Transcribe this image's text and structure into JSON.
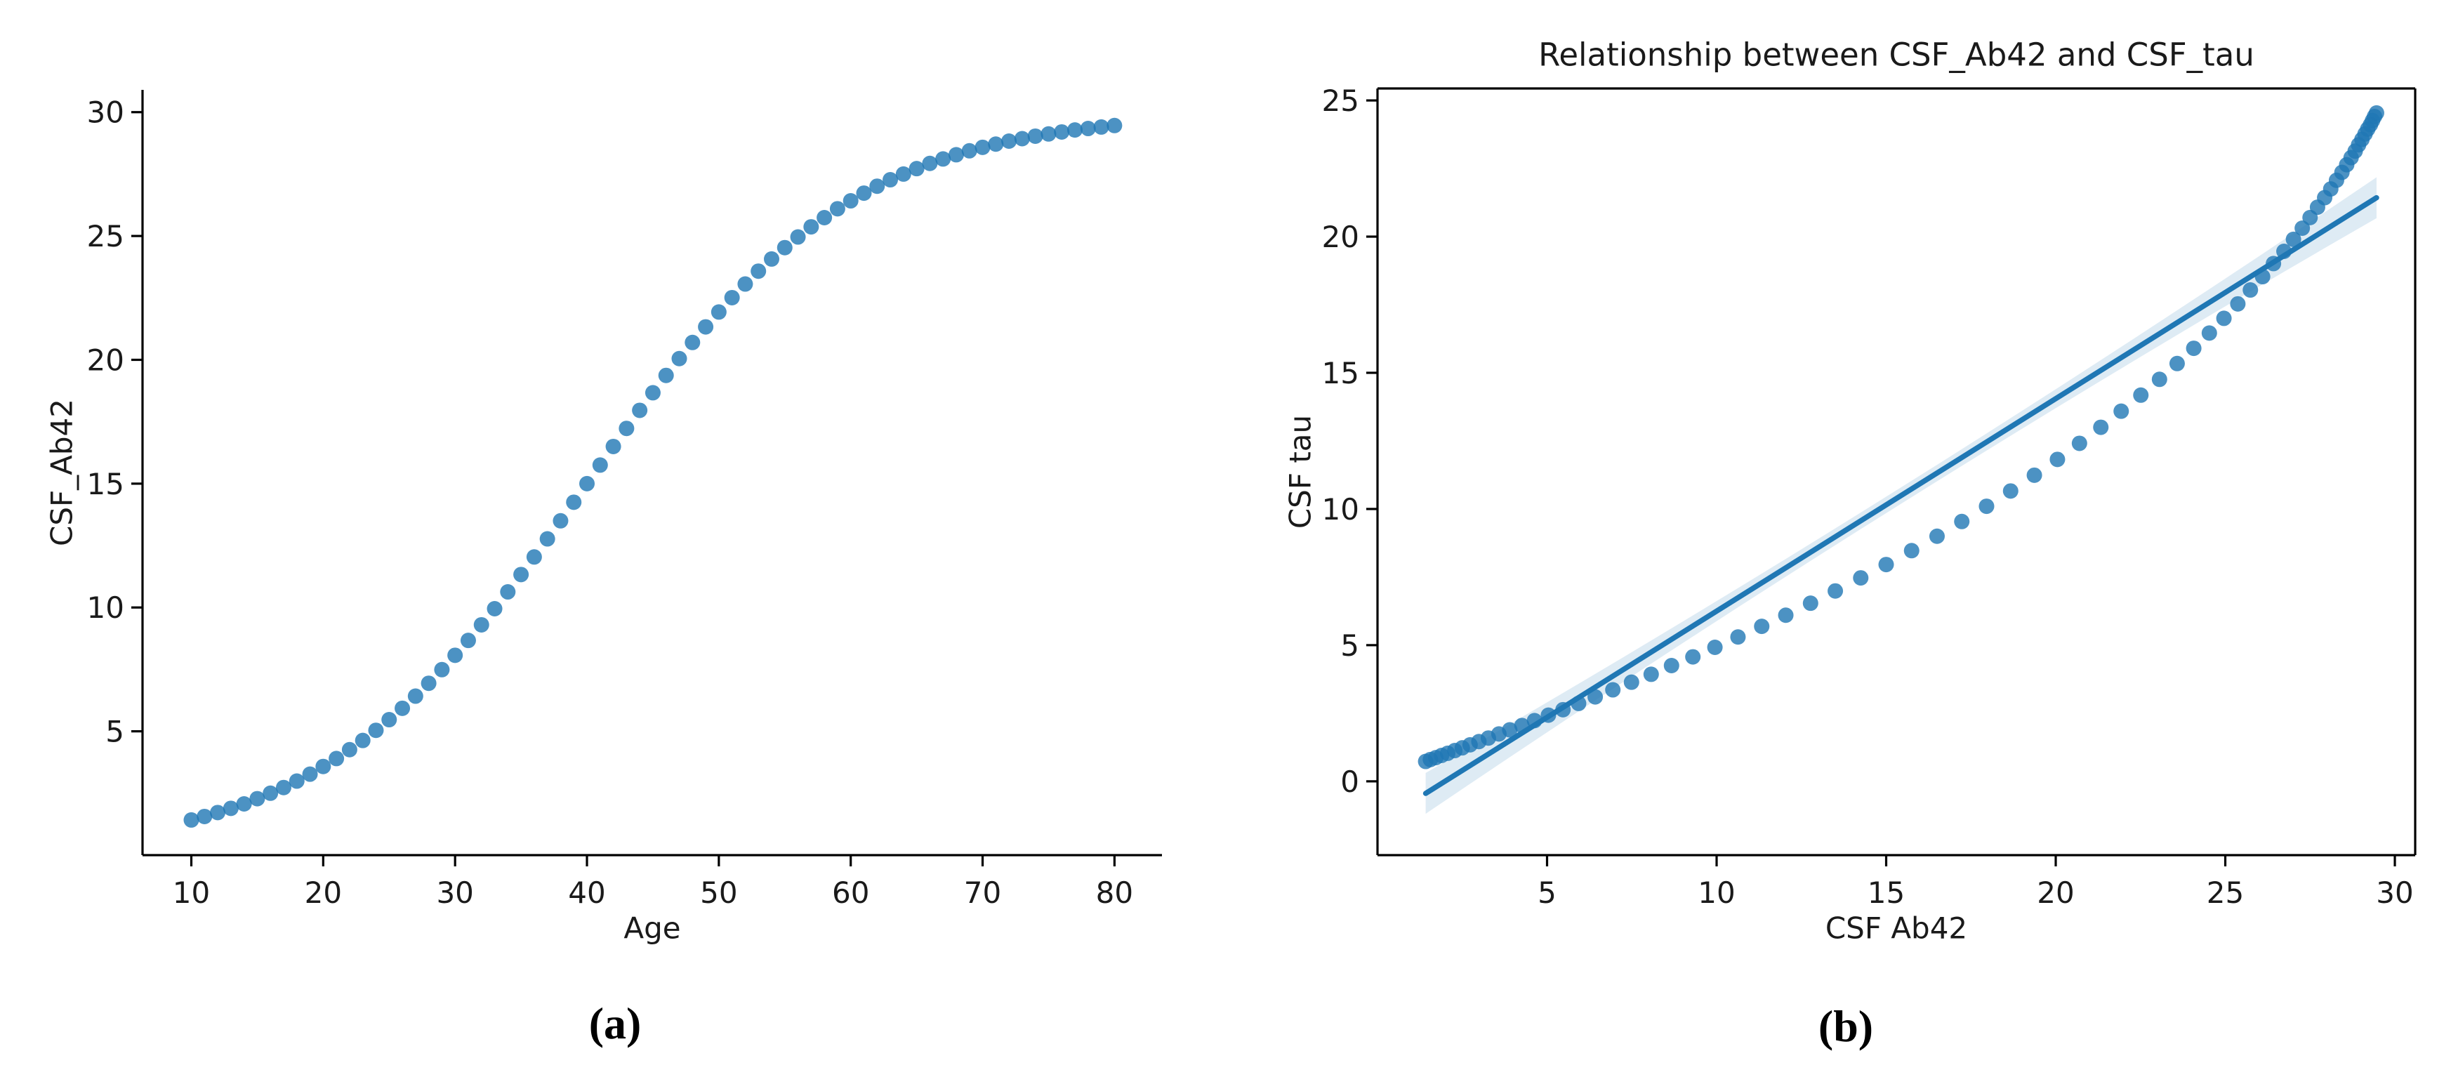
{
  "figure": {
    "background": "#ffffff",
    "panel_labels": {
      "a": "(a)",
      "b": "(b)"
    },
    "text_color": "#1a1a1a"
  },
  "chart_data": [
    {
      "type": "scatter",
      "title": "",
      "xlabel": "Age",
      "ylabel": "CSF_Ab42",
      "xticks": [
        10,
        20,
        30,
        40,
        50,
        60,
        70,
        80
      ],
      "yticks": [
        5,
        10,
        15,
        20,
        25,
        30
      ],
      "xlim": [
        6.3,
        83.6
      ],
      "ylim": [
        0,
        30.9
      ],
      "grid": false,
      "spines": [
        "left",
        "bottom"
      ],
      "marker_color": "#1f77b4",
      "marker_opacity": 0.8,
      "marker_radius": 11,
      "x": [
        10,
        11,
        12,
        13,
        14,
        15,
        16,
        17,
        18,
        19,
        20,
        21,
        22,
        23,
        24,
        25,
        26,
        27,
        28,
        29,
        30,
        31,
        32,
        33,
        34,
        35,
        36,
        37,
        38,
        39,
        40,
        41,
        42,
        43,
        44,
        45,
        46,
        47,
        48,
        49,
        50,
        51,
        52,
        53,
        54,
        55,
        56,
        57,
        58,
        59,
        60,
        61,
        62,
        63,
        64,
        65,
        66,
        67,
        68,
        69,
        70,
        71,
        72,
        73,
        74,
        75,
        76,
        77,
        78,
        79,
        80
      ],
      "y": [
        1.42,
        1.56,
        1.72,
        1.89,
        2.07,
        2.28,
        2.5,
        2.73,
        2.99,
        3.27,
        3.58,
        3.9,
        4.26,
        4.63,
        5.04,
        5.47,
        5.93,
        6.42,
        6.94,
        7.49,
        8.07,
        8.67,
        9.3,
        9.95,
        10.63,
        11.33,
        12.04,
        12.77,
        13.5,
        14.25,
        15.0,
        15.75,
        16.5,
        17.23,
        17.96,
        18.67,
        19.37,
        20.05,
        20.7,
        21.33,
        21.93,
        22.51,
        23.06,
        23.58,
        24.07,
        24.53,
        24.96,
        25.37,
        25.74,
        26.1,
        26.42,
        26.73,
        27.01,
        27.27,
        27.5,
        27.72,
        27.93,
        28.11,
        28.28,
        28.44,
        28.58,
        28.71,
        28.83,
        28.93,
        29.03,
        29.12,
        29.2,
        29.28,
        29.34,
        29.4,
        29.46
      ]
    },
    {
      "type": "scatter",
      "title": "Relationship between CSF_Ab42 and CSF_tau",
      "xlabel": "CSF Ab42",
      "ylabel": "CSF tau",
      "xticks": [
        5,
        10,
        15,
        20,
        25,
        30
      ],
      "yticks": [
        0,
        5,
        10,
        15,
        20,
        25
      ],
      "xlim": [
        0.0,
        30.6
      ],
      "ylim": [
        -2.71,
        25.44
      ],
      "grid": false,
      "spines": [
        "left",
        "bottom",
        "top",
        "right"
      ],
      "marker_color": "#1f77b4",
      "marker_opacity": 0.8,
      "marker_radius": 11,
      "x": [
        1.42,
        1.56,
        1.72,
        1.89,
        2.07,
        2.28,
        2.5,
        2.73,
        2.99,
        3.27,
        3.58,
        3.9,
        4.26,
        4.63,
        5.04,
        5.47,
        5.93,
        6.42,
        6.94,
        7.49,
        8.07,
        8.67,
        9.3,
        9.95,
        10.63,
        11.33,
        12.04,
        12.77,
        13.5,
        14.25,
        15.0,
        15.75,
        16.5,
        17.23,
        17.96,
        18.67,
        19.37,
        20.05,
        20.7,
        21.33,
        21.93,
        22.51,
        23.06,
        23.58,
        24.07,
        24.53,
        24.96,
        25.37,
        25.74,
        26.1,
        26.42,
        26.73,
        27.01,
        27.27,
        27.5,
        27.72,
        27.93,
        28.11,
        28.28,
        28.44,
        28.58,
        28.71,
        28.83,
        28.93,
        29.03,
        29.12,
        29.2,
        29.28,
        29.34,
        29.4,
        29.46
      ],
      "y": [
        0.73,
        0.8,
        0.87,
        0.95,
        1.03,
        1.13,
        1.23,
        1.34,
        1.46,
        1.59,
        1.74,
        1.89,
        2.05,
        2.23,
        2.43,
        2.63,
        2.86,
        3.1,
        3.36,
        3.64,
        3.93,
        4.25,
        4.57,
        4.92,
        5.3,
        5.69,
        6.1,
        6.54,
        6.99,
        7.47,
        7.96,
        8.47,
        9.0,
        9.54,
        10.1,
        10.66,
        11.24,
        11.82,
        12.41,
        13.0,
        13.59,
        14.18,
        14.76,
        15.34,
        15.9,
        16.46,
        17.0,
        17.53,
        18.04,
        18.53,
        19.01,
        19.46,
        19.9,
        20.31,
        20.7,
        21.08,
        21.43,
        21.75,
        22.07,
        22.36,
        22.64,
        22.9,
        23.14,
        23.37,
        23.57,
        23.77,
        23.95,
        24.11,
        24.26,
        24.41,
        24.54
      ],
      "regression": {
        "slope": 0.78,
        "intercept": -1.55,
        "x_start": 1.42,
        "x_end": 29.46,
        "line_color": "#1f77b4",
        "line_width": 7.5,
        "band_color": "#1f77b4",
        "band_opacity": 0.15,
        "band_half_width_mid": 0.3,
        "band_half_width_end": 0.75
      }
    }
  ]
}
